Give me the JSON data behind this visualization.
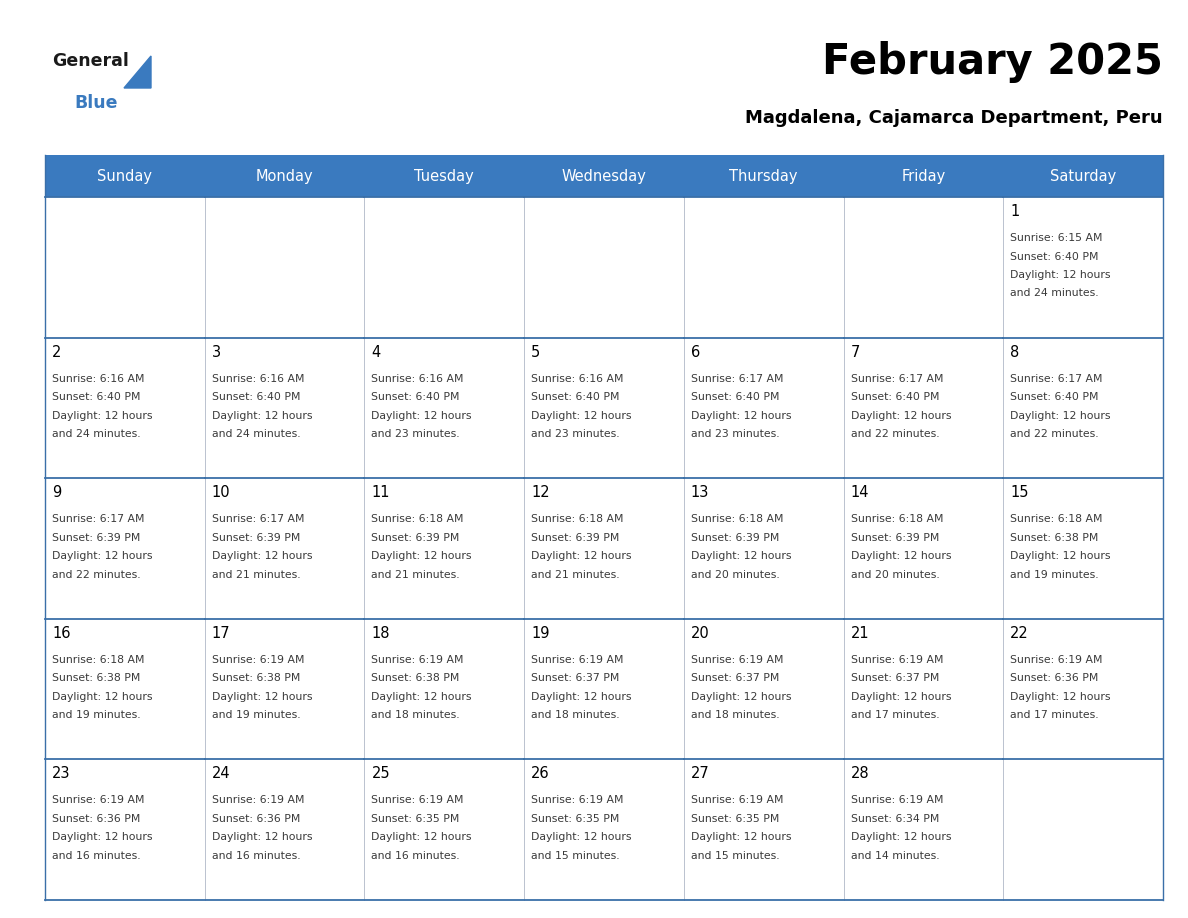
{
  "title": "February 2025",
  "subtitle": "Magdalena, Cajamarca Department, Peru",
  "header_color": "#3a7abf",
  "header_text_color": "#ffffff",
  "cell_bg_even": "#ffffff",
  "cell_bg_odd": "#f0f4f8",
  "cell_border_color": "#3a6fa8",
  "days_of_week": [
    "Sunday",
    "Monday",
    "Tuesday",
    "Wednesday",
    "Thursday",
    "Friday",
    "Saturday"
  ],
  "calendar_data": [
    [
      null,
      null,
      null,
      null,
      null,
      null,
      {
        "day": 1,
        "sunrise": "6:15 AM",
        "sunset": "6:40 PM",
        "daylight": "12 hours\nand 24 minutes."
      }
    ],
    [
      {
        "day": 2,
        "sunrise": "6:16 AM",
        "sunset": "6:40 PM",
        "daylight": "12 hours\nand 24 minutes."
      },
      {
        "day": 3,
        "sunrise": "6:16 AM",
        "sunset": "6:40 PM",
        "daylight": "12 hours\nand 24 minutes."
      },
      {
        "day": 4,
        "sunrise": "6:16 AM",
        "sunset": "6:40 PM",
        "daylight": "12 hours\nand 23 minutes."
      },
      {
        "day": 5,
        "sunrise": "6:16 AM",
        "sunset": "6:40 PM",
        "daylight": "12 hours\nand 23 minutes."
      },
      {
        "day": 6,
        "sunrise": "6:17 AM",
        "sunset": "6:40 PM",
        "daylight": "12 hours\nand 23 minutes."
      },
      {
        "day": 7,
        "sunrise": "6:17 AM",
        "sunset": "6:40 PM",
        "daylight": "12 hours\nand 22 minutes."
      },
      {
        "day": 8,
        "sunrise": "6:17 AM",
        "sunset": "6:40 PM",
        "daylight": "12 hours\nand 22 minutes."
      }
    ],
    [
      {
        "day": 9,
        "sunrise": "6:17 AM",
        "sunset": "6:39 PM",
        "daylight": "12 hours\nand 22 minutes."
      },
      {
        "day": 10,
        "sunrise": "6:17 AM",
        "sunset": "6:39 PM",
        "daylight": "12 hours\nand 21 minutes."
      },
      {
        "day": 11,
        "sunrise": "6:18 AM",
        "sunset": "6:39 PM",
        "daylight": "12 hours\nand 21 minutes."
      },
      {
        "day": 12,
        "sunrise": "6:18 AM",
        "sunset": "6:39 PM",
        "daylight": "12 hours\nand 21 minutes."
      },
      {
        "day": 13,
        "sunrise": "6:18 AM",
        "sunset": "6:39 PM",
        "daylight": "12 hours\nand 20 minutes."
      },
      {
        "day": 14,
        "sunrise": "6:18 AM",
        "sunset": "6:39 PM",
        "daylight": "12 hours\nand 20 minutes."
      },
      {
        "day": 15,
        "sunrise": "6:18 AM",
        "sunset": "6:38 PM",
        "daylight": "12 hours\nand 19 minutes."
      }
    ],
    [
      {
        "day": 16,
        "sunrise": "6:18 AM",
        "sunset": "6:38 PM",
        "daylight": "12 hours\nand 19 minutes."
      },
      {
        "day": 17,
        "sunrise": "6:19 AM",
        "sunset": "6:38 PM",
        "daylight": "12 hours\nand 19 minutes."
      },
      {
        "day": 18,
        "sunrise": "6:19 AM",
        "sunset": "6:38 PM",
        "daylight": "12 hours\nand 18 minutes."
      },
      {
        "day": 19,
        "sunrise": "6:19 AM",
        "sunset": "6:37 PM",
        "daylight": "12 hours\nand 18 minutes."
      },
      {
        "day": 20,
        "sunrise": "6:19 AM",
        "sunset": "6:37 PM",
        "daylight": "12 hours\nand 18 minutes."
      },
      {
        "day": 21,
        "sunrise": "6:19 AM",
        "sunset": "6:37 PM",
        "daylight": "12 hours\nand 17 minutes."
      },
      {
        "day": 22,
        "sunrise": "6:19 AM",
        "sunset": "6:36 PM",
        "daylight": "12 hours\nand 17 minutes."
      }
    ],
    [
      {
        "day": 23,
        "sunrise": "6:19 AM",
        "sunset": "6:36 PM",
        "daylight": "12 hours\nand 16 minutes."
      },
      {
        "day": 24,
        "sunrise": "6:19 AM",
        "sunset": "6:36 PM",
        "daylight": "12 hours\nand 16 minutes."
      },
      {
        "day": 25,
        "sunrise": "6:19 AM",
        "sunset": "6:35 PM",
        "daylight": "12 hours\nand 16 minutes."
      },
      {
        "day": 26,
        "sunrise": "6:19 AM",
        "sunset": "6:35 PM",
        "daylight": "12 hours\nand 15 minutes."
      },
      {
        "day": 27,
        "sunrise": "6:19 AM",
        "sunset": "6:35 PM",
        "daylight": "12 hours\nand 15 minutes."
      },
      {
        "day": 28,
        "sunrise": "6:19 AM",
        "sunset": "6:34 PM",
        "daylight": "12 hours\nand 14 minutes."
      },
      null
    ]
  ],
  "logo_general_color": "#1a1a1a",
  "logo_blue_color": "#3a7abf",
  "figsize": [
    11.88,
    9.18
  ],
  "dpi": 100
}
